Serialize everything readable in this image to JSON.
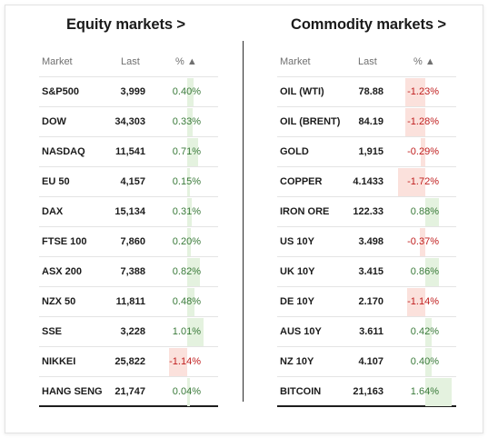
{
  "colors": {
    "positive_text": "#3a7a3a",
    "negative_text": "#c01e1e",
    "positive_bar": "#e4f2df",
    "negative_bar": "#fbe1dc"
  },
  "equity": {
    "title": "Equity markets >",
    "headers": {
      "market": "Market",
      "last": "Last",
      "pct": "% ▲"
    },
    "rows": [
      {
        "market": "S&P500",
        "last": "3,999",
        "pct": "0.40%",
        "change": 0.4
      },
      {
        "market": "DOW",
        "last": "34,303",
        "pct": "0.33%",
        "change": 0.33
      },
      {
        "market": "NASDAQ",
        "last": "11,541",
        "pct": "0.71%",
        "change": 0.71
      },
      {
        "market": "EU 50",
        "last": "4,157",
        "pct": "0.15%",
        "change": 0.15
      },
      {
        "market": "DAX",
        "last": "15,134",
        "pct": "0.31%",
        "change": 0.31
      },
      {
        "market": "FTSE 100",
        "last": "7,860",
        "pct": "0.20%",
        "change": 0.2
      },
      {
        "market": "ASX 200",
        "last": "7,388",
        "pct": "0.82%",
        "change": 0.82
      },
      {
        "market": "NZX 50",
        "last": "11,811",
        "pct": "0.48%",
        "change": 0.48
      },
      {
        "market": "SSE",
        "last": "3,228",
        "pct": "1.01%",
        "change": 1.01
      },
      {
        "market": "NIKKEI",
        "last": "25,822",
        "pct": "-1.14%",
        "change": -1.14
      },
      {
        "market": "HANG SENG",
        "last": "21,747",
        "pct": "0.04%",
        "change": 0.04
      }
    ]
  },
  "commodity": {
    "title": "Commodity markets >",
    "headers": {
      "market": "Market",
      "last": "Last",
      "pct": "% ▲"
    },
    "rows": [
      {
        "market": "OIL (WTI)",
        "last": "78.88",
        "pct": "-1.23%",
        "change": -1.23
      },
      {
        "market": "OIL (BRENT)",
        "last": "84.19",
        "pct": "-1.28%",
        "change": -1.28
      },
      {
        "market": "GOLD",
        "last": "1,915",
        "pct": "-0.29%",
        "change": -0.29
      },
      {
        "market": "COPPER",
        "last": "4.1433",
        "pct": "-1.72%",
        "change": -1.72
      },
      {
        "market": "IRON ORE",
        "last": "122.33",
        "pct": "0.88%",
        "change": 0.88
      },
      {
        "market": "US 10Y",
        "last": "3.498",
        "pct": "-0.37%",
        "change": -0.37
      },
      {
        "market": "UK 10Y",
        "last": "3.415",
        "pct": "0.86%",
        "change": 0.86
      },
      {
        "market": "DE 10Y",
        "last": "2.170",
        "pct": "-1.14%",
        "change": -1.14
      },
      {
        "market": "AUS 10Y",
        "last": "3.611",
        "pct": "0.42%",
        "change": 0.42
      },
      {
        "market": "NZ 10Y",
        "last": "4.107",
        "pct": "0.40%",
        "change": 0.4
      },
      {
        "market": "BITCOIN",
        "last": "21,163",
        "pct": "1.64%",
        "change": 1.64
      }
    ]
  }
}
